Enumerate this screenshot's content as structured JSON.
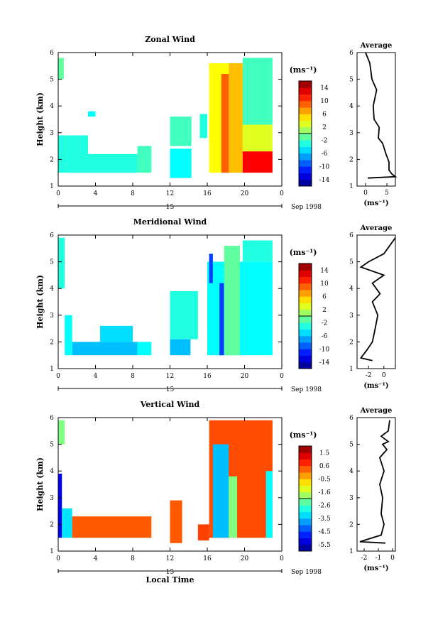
{
  "chart_data": [
    {
      "type": "heatmap",
      "title": "Zonal Wind",
      "ylabel": "Height (km)",
      "ylim": [
        1,
        6
      ],
      "yticks": [
        "1",
        "2",
        "3",
        "4",
        "5",
        "6"
      ],
      "xlim": [
        0,
        24
      ],
      "xticks": [
        "0",
        "4",
        "8",
        "12",
        "16",
        "20",
        "0"
      ],
      "date_label": "15",
      "date_suffix": "Sep 1998",
      "colorbar": {
        "unit": "(ms⁻¹)",
        "ticks": [
          "14",
          "10",
          "6",
          "2",
          "-2",
          "-6",
          "-10",
          "-14"
        ],
        "range": [
          -16,
          16
        ]
      },
      "regions": [
        {
          "x": [
            0,
            0.6
          ],
          "y": [
            5.0,
            5.8
          ],
          "value": -1
        },
        {
          "x": [
            0,
            3.2
          ],
          "y": [
            1.5,
            2.9
          ],
          "value": -3
        },
        {
          "x": [
            3.2,
            8.5
          ],
          "y": [
            1.5,
            2.2
          ],
          "value": -3
        },
        {
          "x": [
            8.5,
            10
          ],
          "y": [
            1.5,
            2.5
          ],
          "value": -2
        },
        {
          "x": [
            3.2,
            4.0
          ],
          "y": [
            3.6,
            3.8
          ],
          "value": -4
        },
        {
          "x": [
            12,
            14.3
          ],
          "y": [
            1.3,
            2.4
          ],
          "value": -4
        },
        {
          "x": [
            12,
            14.3
          ],
          "y": [
            2.5,
            3.6
          ],
          "value": -2
        },
        {
          "x": [
            15.2,
            16.0
          ],
          "y": [
            2.8,
            3.7
          ],
          "value": -3
        },
        {
          "x": [
            16.2,
            18.3
          ],
          "y": [
            1.5,
            5.6
          ],
          "value": 4
        },
        {
          "x": [
            17.5,
            18.5
          ],
          "y": [
            1.5,
            5.2
          ],
          "value": 9
        },
        {
          "x": [
            18.3,
            19.8
          ],
          "y": [
            1.5,
            5.6
          ],
          "value": 6
        },
        {
          "x": [
            19.8,
            23.0
          ],
          "y": [
            1.5,
            2.3
          ],
          "value": 12
        },
        {
          "x": [
            19.8,
            23.0
          ],
          "y": [
            2.3,
            3.3
          ],
          "value": 3
        },
        {
          "x": [
            19.8,
            23.0
          ],
          "y": [
            3.3,
            5.8
          ],
          "value": -2
        }
      ],
      "average": {
        "title": "Average",
        "xlabel": "(ms⁻¹)",
        "xlim": [
          -2,
          7
        ],
        "xticks": [
          0,
          5
        ],
        "profile": [
          [
            0.5,
            1.3
          ],
          [
            7.0,
            1.35
          ],
          [
            6.2,
            1.45
          ],
          [
            5.5,
            1.6
          ],
          [
            5.5,
            1.9
          ],
          [
            4.8,
            2.2
          ],
          [
            4.0,
            2.6
          ],
          [
            3.0,
            2.8
          ],
          [
            3.2,
            3.2
          ],
          [
            2.0,
            3.5
          ],
          [
            1.8,
            4.0
          ],
          [
            2.6,
            4.6
          ],
          [
            1.5,
            5.0
          ],
          [
            1.0,
            5.6
          ],
          [
            0.0,
            6.0
          ]
        ]
      }
    },
    {
      "type": "heatmap",
      "title": "Meridional Wind",
      "ylabel": "Height (km)",
      "ylim": [
        1,
        6
      ],
      "yticks": [
        "1",
        "2",
        "3",
        "4",
        "5",
        "6"
      ],
      "xlim": [
        0,
        24
      ],
      "xticks": [
        "0",
        "4",
        "8",
        "12",
        "16",
        "20",
        "0"
      ],
      "date_label": "15",
      "date_suffix": "Sep 1998",
      "colorbar": {
        "unit": "(ms⁻¹)",
        "ticks": [
          "14",
          "10",
          "6",
          "2",
          "-2",
          "-6",
          "-10",
          "-14"
        ],
        "range": [
          -16,
          16
        ]
      },
      "regions": [
        {
          "x": [
            0,
            0.7
          ],
          "y": [
            4.0,
            5.9
          ],
          "value": -3
        },
        {
          "x": [
            0.7,
            1.5
          ],
          "y": [
            1.5,
            3.0
          ],
          "value": -4
        },
        {
          "x": [
            1.5,
            8.5
          ],
          "y": [
            1.5,
            2.0
          ],
          "value": -6
        },
        {
          "x": [
            4.5,
            8.0
          ],
          "y": [
            2.0,
            2.6
          ],
          "value": -5
        },
        {
          "x": [
            8.5,
            10.0
          ],
          "y": [
            1.5,
            2.0
          ],
          "value": -4
        },
        {
          "x": [
            12,
            14.2
          ],
          "y": [
            1.5,
            2.1
          ],
          "value": -6
        },
        {
          "x": [
            12,
            15.0
          ],
          "y": [
            2.1,
            3.9
          ],
          "value": -3
        },
        {
          "x": [
            16.0,
            23.0
          ],
          "y": [
            1.5,
            5.0
          ],
          "value": -4
        },
        {
          "x": [
            17.3,
            17.8
          ],
          "y": [
            1.5,
            4.2
          ],
          "value": -10
        },
        {
          "x": [
            17.8,
            19.5
          ],
          "y": [
            1.5,
            5.6
          ],
          "value": -1
        },
        {
          "x": [
            19.8,
            23.0
          ],
          "y": [
            5.0,
            5.8
          ],
          "value": -3
        },
        {
          "x": [
            16.2,
            16.6
          ],
          "y": [
            4.2,
            5.3
          ],
          "value": -10
        }
      ],
      "average": {
        "title": "Average",
        "xlabel": "(ms⁻¹)",
        "xlim": [
          -3.5,
          1.5
        ],
        "xticks": [
          -2,
          0
        ],
        "profile": [
          [
            1.5,
            5.9
          ],
          [
            0.0,
            5.3
          ],
          [
            -2.0,
            5.0
          ],
          [
            -3.0,
            4.8
          ],
          [
            0.0,
            4.5
          ],
          [
            -1.5,
            4.2
          ],
          [
            -0.5,
            3.8
          ],
          [
            -1.5,
            3.5
          ],
          [
            -0.8,
            3.0
          ],
          [
            -1.2,
            2.4
          ],
          [
            -1.5,
            2.0
          ],
          [
            -2.2,
            1.7
          ],
          [
            -3.0,
            1.4
          ],
          [
            -1.5,
            1.3
          ]
        ]
      }
    },
    {
      "type": "heatmap",
      "title": "Vertical Wind",
      "ylabel": "Height (km)",
      "ylim": [
        1,
        6
      ],
      "yticks": [
        "1",
        "2",
        "3",
        "4",
        "5",
        "6"
      ],
      "xlim": [
        0,
        24
      ],
      "xticks": [
        "0",
        "4",
        "8",
        "12",
        "16",
        "20",
        "0"
      ],
      "date_label": "15",
      "date_suffix": "Sep 1998",
      "xlabel": "Local Time",
      "colorbar": {
        "unit": "(ms⁻¹)",
        "ticks": [
          "1.5",
          "0.6",
          "-0.5",
          "-1.6",
          "-2.6",
          "-3.5",
          "-4.5",
          "-5.5"
        ],
        "range": [
          -6.0,
          2.0
        ]
      },
      "regions": [
        {
          "x": [
            0,
            0.7
          ],
          "y": [
            5.0,
            5.9
          ],
          "value": -2.0
        },
        {
          "x": [
            0,
            0.4
          ],
          "y": [
            1.5,
            3.9
          ],
          "value": -5.0
        },
        {
          "x": [
            0.4,
            1.5
          ],
          "y": [
            1.5,
            2.6
          ],
          "value": -3.2
        },
        {
          "x": [
            1.5,
            10.0
          ],
          "y": [
            1.5,
            2.3
          ],
          "value": 0.3
        },
        {
          "x": [
            12,
            13.3
          ],
          "y": [
            1.3,
            2.9
          ],
          "value": 0.3
        },
        {
          "x": [
            15.0,
            16.2
          ],
          "y": [
            1.4,
            2.0
          ],
          "value": 0.5
        },
        {
          "x": [
            16.2,
            23.0
          ],
          "y": [
            1.5,
            5.9
          ],
          "value": 0.4
        },
        {
          "x": [
            16.6,
            18.3
          ],
          "y": [
            1.5,
            5.0
          ],
          "value": -3.5
        },
        {
          "x": [
            18.3,
            19.2
          ],
          "y": [
            1.5,
            3.8
          ],
          "value": -2.0
        },
        {
          "x": [
            22.3,
            23.0
          ],
          "y": [
            1.5,
            4.0
          ],
          "value": -3.0
        }
      ],
      "average": {
        "title": "Average",
        "xlabel": "(ms⁻¹)",
        "xlim": [
          -2.5,
          0.2
        ],
        "xticks": [
          -2,
          -1,
          0
        ],
        "profile": [
          [
            -0.2,
            5.9
          ],
          [
            -0.3,
            5.5
          ],
          [
            -0.8,
            5.3
          ],
          [
            -0.3,
            5.1
          ],
          [
            -0.7,
            5.0
          ],
          [
            -0.4,
            4.8
          ],
          [
            -0.9,
            4.5
          ],
          [
            -0.6,
            4.0
          ],
          [
            -0.9,
            3.5
          ],
          [
            -0.7,
            3.0
          ],
          [
            -0.8,
            2.4
          ],
          [
            -0.6,
            2.0
          ],
          [
            -0.8,
            1.6
          ],
          [
            -2.3,
            1.35
          ],
          [
            -0.5,
            1.3
          ]
        ]
      }
    }
  ]
}
